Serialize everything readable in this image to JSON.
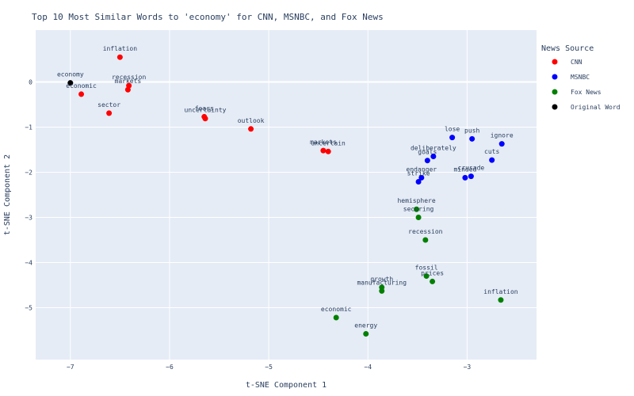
{
  "chart_data": {
    "type": "scatter",
    "title": "Top 10 Most Similar Words to 'economy' for CNN, MSNBC, and Fox News",
    "xlabel": "t-SNE Component 1",
    "ylabel": "t-SNE Component 2",
    "xlim": [
      -7.35,
      -2.3
    ],
    "ylim": [
      -6.15,
      1.15
    ],
    "x_ticks": [
      -7,
      -6,
      -5,
      -4,
      -3
    ],
    "y_ticks": [
      0,
      -1,
      -2,
      -3,
      -4,
      -5
    ],
    "grid": true,
    "legend": {
      "title": "News Source",
      "placement": "right"
    },
    "series": [
      {
        "name": "CNN",
        "color": "#ff0000",
        "points": [
          {
            "label": "inflation",
            "x": -6.5,
            "y": 0.55
          },
          {
            "label": "recession",
            "x": -6.41,
            "y": -0.08
          },
          {
            "label": "markets",
            "x": -6.42,
            "y": -0.17
          },
          {
            "label": "economic",
            "x": -6.89,
            "y": -0.27
          },
          {
            "label": "sector",
            "x": -6.61,
            "y": -0.69
          },
          {
            "label": "fears",
            "x": -5.65,
            "y": -0.77
          },
          {
            "label": "uncertainty",
            "x": -5.64,
            "y": -0.81
          },
          {
            "label": "outlook",
            "x": -5.18,
            "y": -1.04
          },
          {
            "label": "markets",
            "x": -4.45,
            "y": -1.52
          },
          {
            "label": "uncertain",
            "x": -4.4,
            "y": -1.54
          }
        ]
      },
      {
        "name": "MSNBC",
        "color": "#0000ff",
        "points": [
          {
            "label": "push",
            "x": -2.95,
            "y": -1.26
          },
          {
            "label": "lose",
            "x": -3.15,
            "y": -1.23
          },
          {
            "label": "cuts",
            "x": -2.75,
            "y": -1.73
          },
          {
            "label": "ignore",
            "x": -2.65,
            "y": -1.37
          },
          {
            "label": "goals",
            "x": -3.4,
            "y": -1.74
          },
          {
            "label": "deliberately",
            "x": -3.34,
            "y": -1.65
          },
          {
            "label": "endanger",
            "x": -3.46,
            "y": -2.12
          },
          {
            "label": "strike",
            "x": -3.49,
            "y": -2.21
          },
          {
            "label": "minded",
            "x": -3.02,
            "y": -2.12
          },
          {
            "label": "crusade",
            "x": -2.96,
            "y": -2.09
          }
        ]
      },
      {
        "name": "Fox News",
        "color": "#008000",
        "points": [
          {
            "label": "hemisphere",
            "x": -3.51,
            "y": -2.82
          },
          {
            "label": "securing",
            "x": -3.49,
            "y": -3.0
          },
          {
            "label": "recession",
            "x": -3.42,
            "y": -3.5
          },
          {
            "label": "fossil",
            "x": -3.41,
            "y": -4.3
          },
          {
            "label": "prices",
            "x": -3.35,
            "y": -4.42
          },
          {
            "label": "growth",
            "x": -3.86,
            "y": -4.55
          },
          {
            "label": "manufacturing",
            "x": -3.86,
            "y": -4.63
          },
          {
            "label": "inflation",
            "x": -2.66,
            "y": -4.83
          },
          {
            "label": "economic",
            "x": -4.32,
            "y": -5.22
          },
          {
            "label": "energy",
            "x": -4.02,
            "y": -5.58
          }
        ]
      },
      {
        "name": "Original Word",
        "color": "#000000",
        "points": [
          {
            "label": "economy",
            "x": -7.0,
            "y": -0.02
          }
        ]
      }
    ]
  }
}
